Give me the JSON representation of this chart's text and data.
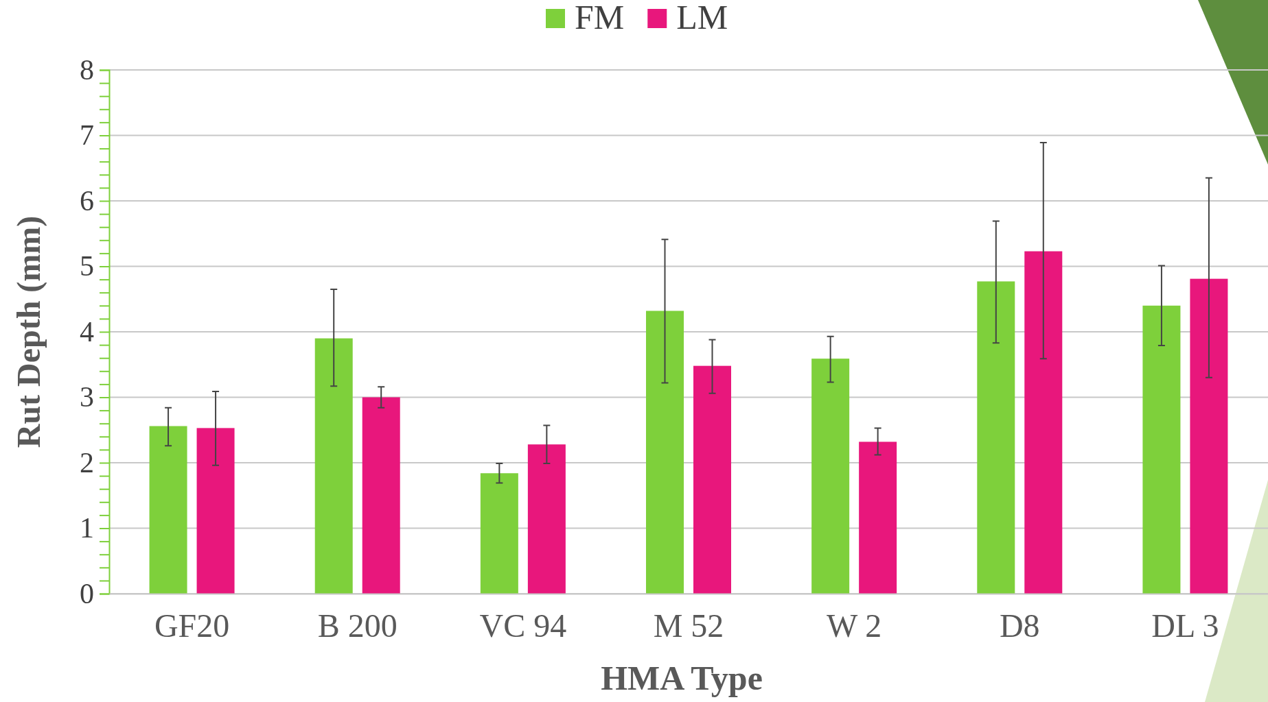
{
  "chart_data": {
    "type": "bar",
    "xlabel": "HMA Type",
    "ylabel": "Rut Depth (mm)",
    "categories": [
      "GF20",
      "B 200",
      "VC 94",
      "M 52",
      "W 2",
      "D8",
      "DL 3"
    ],
    "series": [
      {
        "name": "FM",
        "color": "#7ed03b",
        "values": [
          2.56,
          3.9,
          1.84,
          4.32,
          3.59,
          4.77,
          4.4
        ],
        "errors": [
          [
            2.26,
            2.84
          ],
          [
            3.17,
            4.65
          ],
          [
            1.69,
            1.99
          ],
          [
            3.22,
            5.41
          ],
          [
            3.23,
            3.93
          ],
          [
            3.83,
            5.69
          ],
          [
            3.79,
            5.01
          ]
        ]
      },
      {
        "name": "LM",
        "color": "#e8177c",
        "values": [
          2.53,
          3.0,
          2.28,
          3.48,
          2.32,
          5.23,
          4.81
        ],
        "errors": [
          [
            1.96,
            3.09
          ],
          [
            2.84,
            3.16
          ],
          [
            1.99,
            2.57
          ],
          [
            3.06,
            3.88
          ],
          [
            2.12,
            2.53
          ],
          [
            3.59,
            6.89
          ],
          [
            3.3,
            6.35
          ]
        ]
      }
    ],
    "ylim": [
      0,
      8
    ],
    "yticks": [
      0,
      {
        "value": 0.2,
        "label": null
      },
      {
        "value": 0.4,
        "label": null
      },
      {
        "value": 0.6,
        "label": null
      },
      {
        "value": 0.8,
        "label": null
      },
      1,
      {
        "value": 1.2,
        "label": null
      },
      {
        "value": 1.4,
        "label": null
      },
      {
        "value": 1.6,
        "label": null
      },
      {
        "value": 1.8,
        "label": null
      },
      2,
      {
        "value": 2.2,
        "label": null
      },
      {
        "value": 2.4,
        "label": null
      },
      {
        "value": 2.6,
        "label": null
      },
      {
        "value": 2.8,
        "label": null
      },
      3,
      {
        "value": 3.2,
        "label": null
      },
      {
        "value": 3.4,
        "label": null
      },
      {
        "value": 3.6,
        "label": null
      },
      {
        "value": 3.8,
        "label": null
      },
      4,
      {
        "value": 4.2,
        "label": null
      },
      {
        "value": 4.4,
        "label": null
      },
      {
        "value": 4.6,
        "label": null
      },
      {
        "value": 4.8,
        "label": null
      },
      5,
      {
        "value": 5.2,
        "label": null
      },
      {
        "value": 5.4,
        "label": null
      },
      {
        "value": 5.6,
        "label": null
      },
      {
        "value": 5.8,
        "label": null
      },
      6,
      {
        "value": 6.2,
        "label": null
      },
      {
        "value": 6.4,
        "label": null
      },
      {
        "value": 6.6,
        "label": null
      },
      {
        "value": 6.8,
        "label": null
      },
      7,
      {
        "value": 7.2,
        "label": null
      },
      {
        "value": 7.4,
        "label": null
      },
      {
        "value": 7.6,
        "label": null
      },
      {
        "value": 7.8,
        "label": null
      },
      8
    ],
    "grid": "y",
    "legend": "top"
  }
}
